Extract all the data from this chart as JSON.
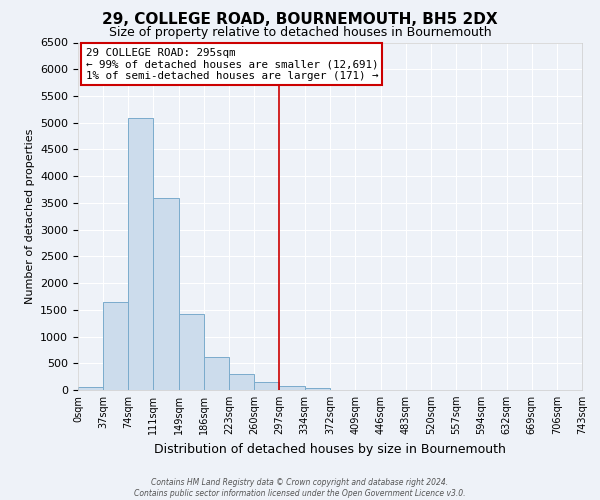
{
  "title": "29, COLLEGE ROAD, BOURNEMOUTH, BH5 2DX",
  "subtitle": "Size of property relative to detached houses in Bournemouth",
  "xlabel": "Distribution of detached houses by size in Bournemouth",
  "ylabel": "Number of detached properties",
  "footer_line1": "Contains HM Land Registry data © Crown copyright and database right 2024.",
  "footer_line2": "Contains public sector information licensed under the Open Government Licence v3.0.",
  "bin_edges": [
    0,
    37,
    74,
    111,
    149,
    186,
    223,
    260,
    297,
    334,
    372,
    409,
    446,
    483,
    520,
    557,
    594,
    632,
    669,
    706,
    743
  ],
  "bin_counts": [
    50,
    1650,
    5080,
    3600,
    1420,
    615,
    305,
    155,
    80,
    45,
    0,
    0,
    0,
    0,
    0,
    0,
    0,
    0,
    0,
    0
  ],
  "bar_color": "#ccdcec",
  "bar_edgecolor": "#7aabcc",
  "vline_x": 297,
  "vline_color": "#cc0000",
  "ylim": [
    0,
    6500
  ],
  "yticks": [
    0,
    500,
    1000,
    1500,
    2000,
    2500,
    3000,
    3500,
    4000,
    4500,
    5000,
    5500,
    6000,
    6500
  ],
  "annotation_title": "29 COLLEGE ROAD: 295sqm",
  "annotation_line1": "← 99% of detached houses are smaller (12,691)",
  "annotation_line2": "1% of semi-detached houses are larger (171) →",
  "annotation_box_facecolor": "#ffffff",
  "annotation_box_edgecolor": "#cc0000",
  "background_color": "#eef2f8",
  "plot_bg_color": "#eef2f8",
  "grid_color": "#ffffff",
  "title_fontsize": 11,
  "subtitle_fontsize": 9,
  "ylabel_fontsize": 8,
  "xlabel_fontsize": 9
}
